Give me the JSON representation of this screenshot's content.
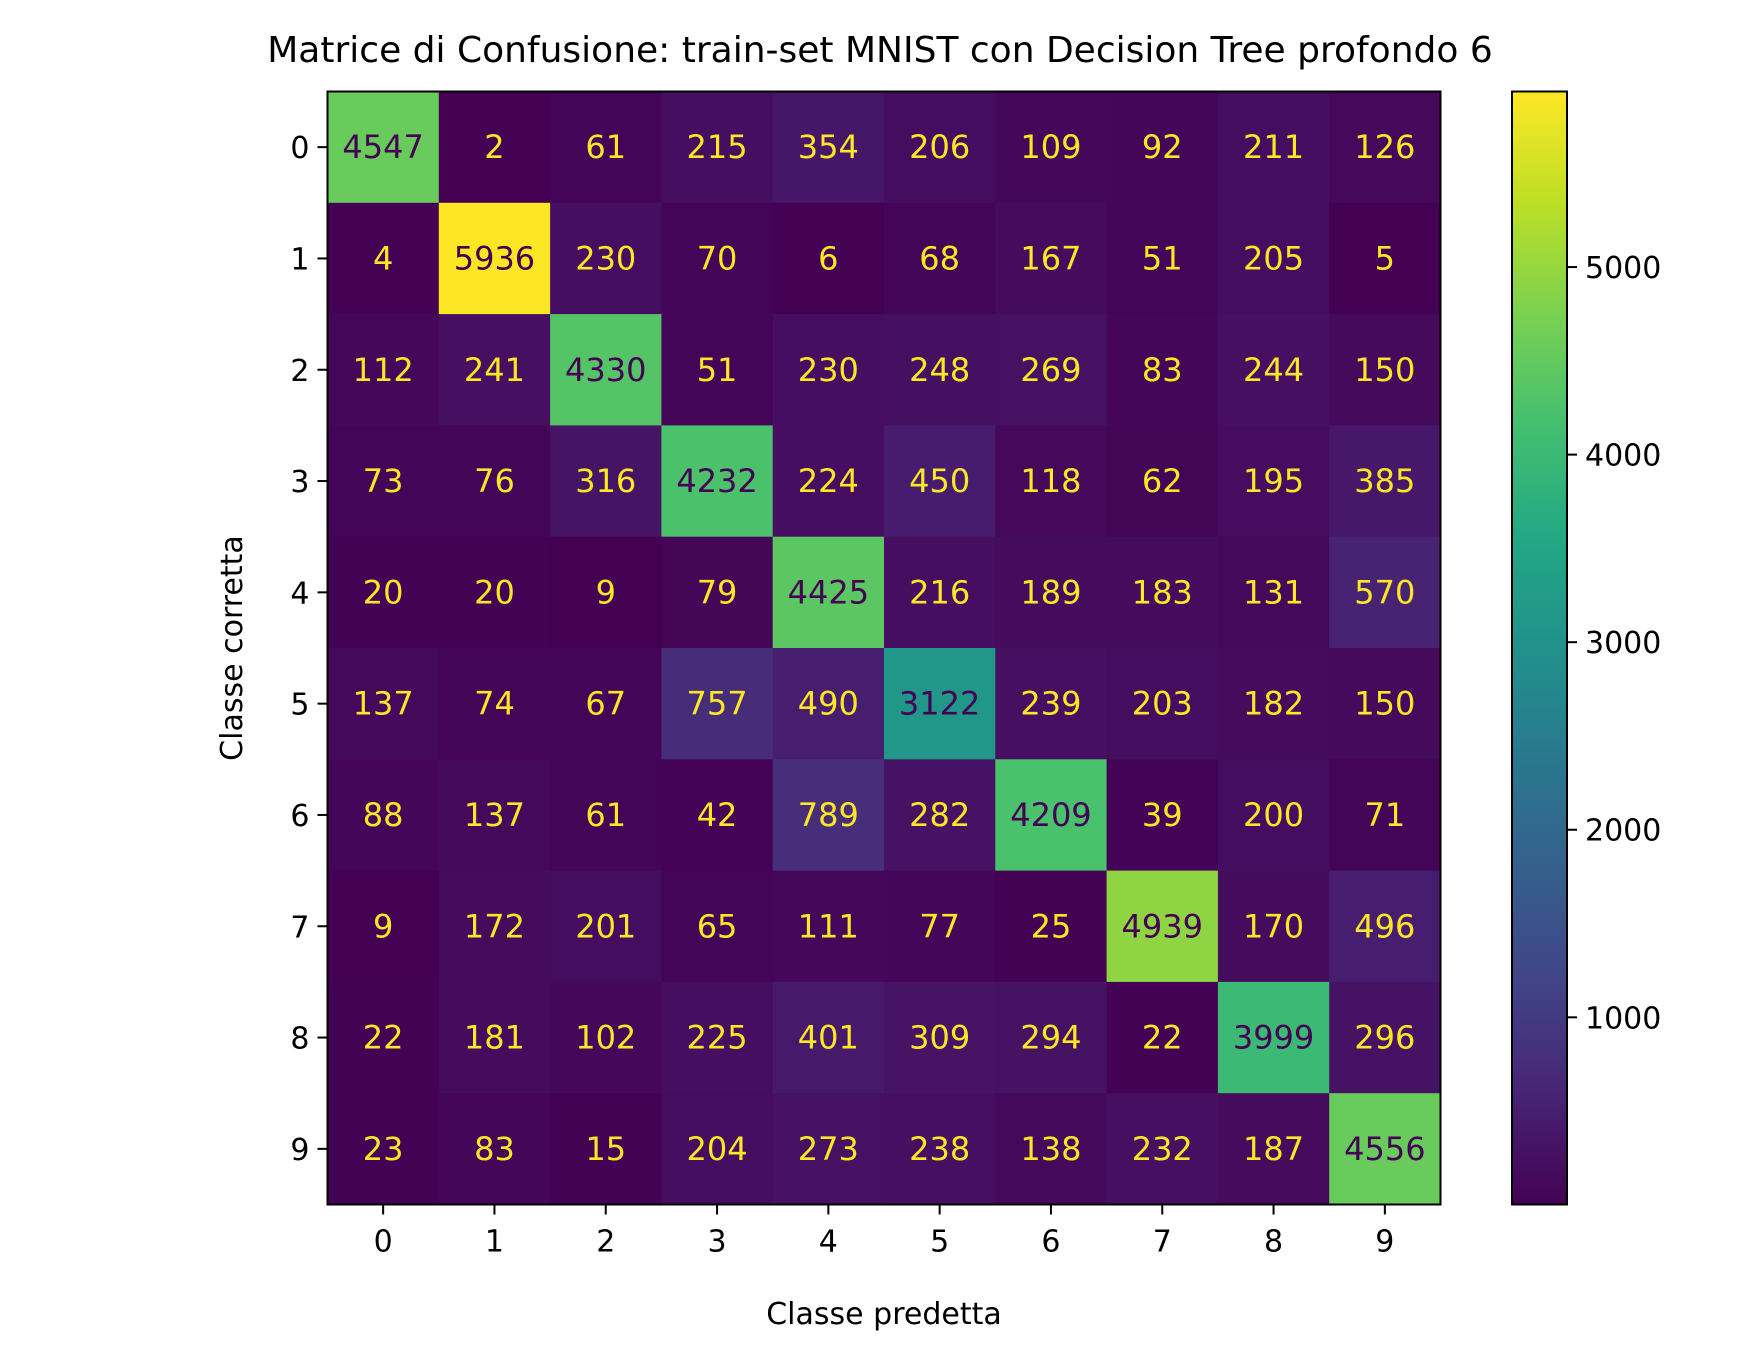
{
  "chart_data": {
    "type": "heatmap",
    "title": "Matrice di Confusione: train-set MNIST con Decision Tree profondo 6",
    "xlabel": "Classe predetta",
    "ylabel": "Classe corretta",
    "x_categories": [
      "0",
      "1",
      "2",
      "3",
      "4",
      "5",
      "6",
      "7",
      "8",
      "9"
    ],
    "y_categories": [
      "0",
      "1",
      "2",
      "3",
      "4",
      "5",
      "6",
      "7",
      "8",
      "9"
    ],
    "values": [
      [
        4547,
        2,
        61,
        215,
        354,
        206,
        109,
        92,
        211,
        126
      ],
      [
        4,
        5936,
        230,
        70,
        6,
        68,
        167,
        51,
        205,
        5
      ],
      [
        112,
        241,
        4330,
        51,
        230,
        248,
        269,
        83,
        244,
        150
      ],
      [
        73,
        76,
        316,
        4232,
        224,
        450,
        118,
        62,
        195,
        385
      ],
      [
        20,
        20,
        9,
        79,
        4425,
        216,
        189,
        183,
        131,
        570
      ],
      [
        137,
        74,
        67,
        757,
        490,
        3122,
        239,
        203,
        182,
        150
      ],
      [
        88,
        137,
        61,
        42,
        789,
        282,
        4209,
        39,
        200,
        71
      ],
      [
        9,
        172,
        201,
        65,
        111,
        77,
        25,
        4939,
        170,
        496
      ],
      [
        22,
        181,
        102,
        225,
        401,
        309,
        294,
        22,
        3999,
        296
      ],
      [
        23,
        83,
        15,
        204,
        273,
        238,
        138,
        232,
        187,
        4556
      ]
    ],
    "colormap": "viridis",
    "colorbar": {
      "range": [
        2,
        5936
      ],
      "ticks": [
        "1000",
        "2000",
        "3000",
        "4000",
        "5000"
      ],
      "tick_values": [
        1000,
        2000,
        3000,
        4000,
        5000
      ]
    },
    "text_colors": {
      "light_cells": "#440154",
      "dark_cells": "#fde725"
    },
    "grid": false
  }
}
